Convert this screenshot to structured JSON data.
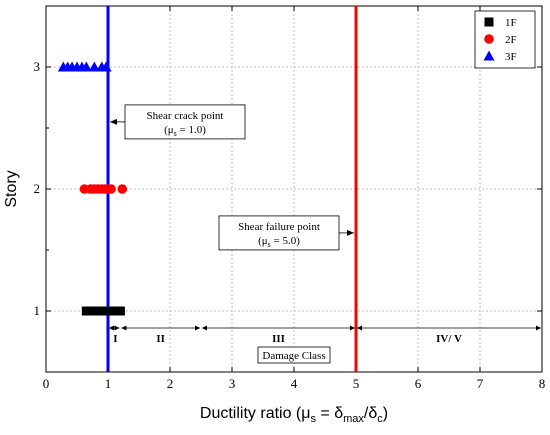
{
  "chart_data": {
    "type": "scatter",
    "xlabel_parts": {
      "a": "Ductility ratio (μ",
      "b": "s",
      "c": " = δ",
      "d": "max",
      "e": "/δ",
      "f": "c",
      "g": ")"
    },
    "ylabel": "Story",
    "xlim": [
      0,
      8
    ],
    "ylim": [
      0.5,
      3.5
    ],
    "x_ticks": [
      0,
      1,
      2,
      3,
      4,
      5,
      6,
      7,
      8
    ],
    "y_ticks": [
      1,
      2,
      3
    ],
    "grid": true,
    "legend_position": "top-right",
    "series": [
      {
        "name": "1F",
        "color": "#000000",
        "marker": "square",
        "y": 1,
        "x": [
          0.65,
          0.7,
          0.75,
          0.8,
          0.9,
          0.95,
          1.0,
          1.05,
          1.1,
          1.15,
          1.2
        ]
      },
      {
        "name": "2F",
        "color": "#ff0000",
        "marker": "circle",
        "y": 2,
        "x": [
          0.62,
          0.72,
          0.78,
          0.84,
          0.9,
          0.95,
          1.0,
          1.05,
          1.23
        ]
      },
      {
        "name": "3F",
        "color": "#0000ff",
        "marker": "triangle",
        "y": 3,
        "x": [
          0.28,
          0.35,
          0.42,
          0.5,
          0.58,
          0.65,
          0.78,
          0.9,
          0.97
        ]
      }
    ],
    "vertical_lines": [
      {
        "x": 1.0,
        "color": "#0000ff"
      },
      {
        "x": 5.0,
        "color": "#ff0000"
      }
    ],
    "annotations": [
      {
        "title": "Shear crack point",
        "sub": {
          "a": "(μ",
          "b": "s",
          "c": "= 1.0)"
        },
        "arrow_to_x": 1.0,
        "arrow_y": 2.55
      },
      {
        "title": "Shear failure point",
        "sub": {
          "a": "(μ",
          "b": "s",
          "c": "= 5.0)"
        },
        "arrow_to_x": 5.0,
        "arrow_y": 1.64
      }
    ],
    "damage_class": {
      "label": "Damage Class",
      "label_x": 4.0,
      "boundaries": [
        1.0,
        1.2,
        2.5,
        5.0,
        8.0
      ],
      "classes": [
        {
          "label": "I",
          "x": 1.12
        },
        {
          "label": "II",
          "x": 1.85
        },
        {
          "label": "III",
          "x": 3.75
        },
        {
          "label": "IV/ V",
          "x": 6.5
        }
      ]
    }
  }
}
